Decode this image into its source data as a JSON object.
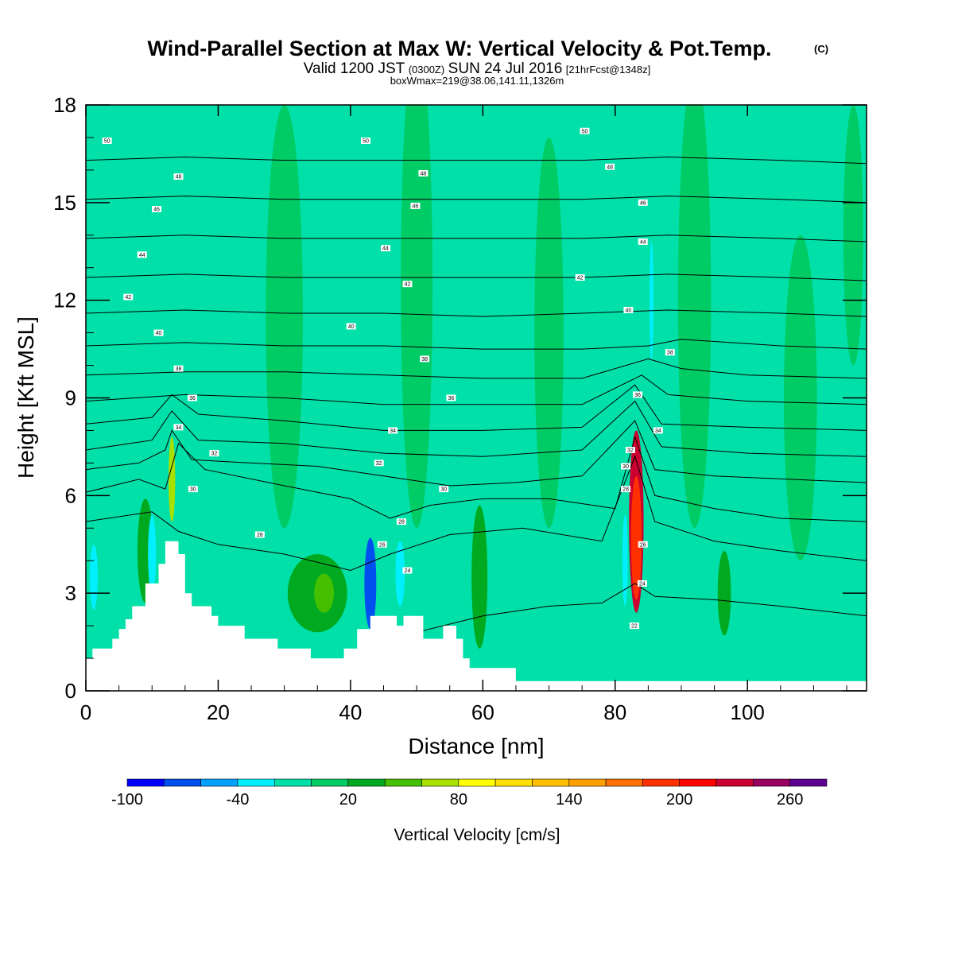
{
  "header": {
    "title": "Wind-Parallel Section at Max W: Vertical Velocity & Pot.Temp.",
    "title_mark": "(C)",
    "valid_prefix": "Valid 1200 JST",
    "valid_utc": "(0300Z)",
    "valid_date": "SUN 24 Jul 2016",
    "forecast": "[21hrFcst@1348z]",
    "box_info": "boxWmax=219@38.06,141.11,1326m"
  },
  "chart_data": {
    "type": "heatmap",
    "title": "Wind-Parallel Section at Max W: Vertical Velocity & Pot.Temp.",
    "xlabel": "Distance [nm]",
    "ylabel": "Height [Kft MSL]",
    "xlim": [
      0,
      118
    ],
    "ylim": [
      0,
      18
    ],
    "x_ticks": [
      "0",
      "20",
      "40",
      "60",
      "80",
      "100"
    ],
    "y_ticks": [
      "0",
      "3",
      "6",
      "9",
      "12",
      "15",
      "18"
    ],
    "x_tick_values": [
      0,
      20,
      40,
      60,
      80,
      100
    ],
    "y_tick_values": [
      0,
      3,
      6,
      9,
      12,
      15,
      18
    ],
    "grid": false,
    "colorbar": {
      "label": "Vertical Velocity [cm/s]",
      "tick_labels": [
        "-100",
        "-40",
        "20",
        "80",
        "140",
        "200",
        "260"
      ],
      "tick_values": [
        -100,
        -40,
        20,
        80,
        140,
        200,
        260
      ],
      "levels": [
        -100,
        -80,
        -60,
        -40,
        -20,
        0,
        20,
        40,
        60,
        80,
        100,
        120,
        140,
        160,
        180,
        200,
        220,
        240,
        260,
        280
      ],
      "colors": [
        "#0000ff",
        "#0050f0",
        "#00a0ff",
        "#00f0ff",
        "#00e0a8",
        "#00cc66",
        "#00aa20",
        "#44c000",
        "#a8e000",
        "#ffff00",
        "#ffe000",
        "#ffc000",
        "#ffa000",
        "#ff7000",
        "#ff3000",
        "#ff0000",
        "#cc0030",
        "#990060",
        "#5c0090"
      ]
    },
    "terrain_kft": [
      [
        0,
        1.0
      ],
      [
        1,
        1.0
      ],
      [
        1,
        1.3
      ],
      [
        4,
        1.3
      ],
      [
        4,
        1.6
      ],
      [
        5,
        1.6
      ],
      [
        5,
        1.9
      ],
      [
        6,
        1.9
      ],
      [
        6,
        2.2
      ],
      [
        7,
        2.2
      ],
      [
        7,
        2.6
      ],
      [
        9,
        2.6
      ],
      [
        9,
        3.3
      ],
      [
        11,
        3.3
      ],
      [
        11,
        3.9
      ],
      [
        12,
        3.9
      ],
      [
        12,
        4.6
      ],
      [
        14,
        4.6
      ],
      [
        14,
        4.2
      ],
      [
        15,
        4.2
      ],
      [
        15,
        3.0
      ],
      [
        16,
        3.0
      ],
      [
        16,
        2.6
      ],
      [
        19,
        2.6
      ],
      [
        19,
        2.3
      ],
      [
        20,
        2.3
      ],
      [
        20,
        2.0
      ],
      [
        24,
        2.0
      ],
      [
        24,
        1.6
      ],
      [
        29,
        1.6
      ],
      [
        29,
        1.3
      ],
      [
        34,
        1.3
      ],
      [
        34,
        1.0
      ],
      [
        39,
        1.0
      ],
      [
        39,
        1.3
      ],
      [
        41,
        1.3
      ],
      [
        41,
        1.9
      ],
      [
        43,
        1.9
      ],
      [
        43,
        2.3
      ],
      [
        47,
        2.3
      ],
      [
        47,
        2.0
      ],
      [
        48,
        2.0
      ],
      [
        48,
        2.3
      ],
      [
        51,
        2.3
      ],
      [
        51,
        1.6
      ],
      [
        54,
        1.6
      ],
      [
        54,
        2.0
      ],
      [
        56,
        2.0
      ],
      [
        56,
        1.6
      ],
      [
        57,
        1.6
      ],
      [
        57,
        1.0
      ],
      [
        58,
        1.0
      ],
      [
        58,
        0.7
      ],
      [
        65,
        0.7
      ],
      [
        65,
        0.3
      ],
      [
        118,
        0.3
      ]
    ],
    "theta_contours": [
      {
        "value": 24,
        "points": [
          [
            42,
            0.5
          ],
          [
            50,
            1.8
          ],
          [
            60,
            2.3
          ],
          [
            70,
            2.6
          ],
          [
            78,
            2.7
          ],
          [
            83,
            3.3
          ],
          [
            86,
            2.9
          ],
          [
            95,
            2.8
          ],
          [
            105,
            2.6
          ],
          [
            118,
            2.3
          ]
        ]
      },
      {
        "value": 26,
        "points": [
          [
            0,
            5.2
          ],
          [
            10,
            5.5
          ],
          [
            14,
            4.9
          ],
          [
            20,
            4.5
          ],
          [
            30,
            4.2
          ],
          [
            40,
            3.7
          ],
          [
            46,
            4.2
          ],
          [
            55,
            4.8
          ],
          [
            66,
            5.0
          ],
          [
            78,
            4.6
          ],
          [
            83,
            7.2
          ],
          [
            86,
            5.2
          ],
          [
            95,
            4.6
          ],
          [
            105,
            4.3
          ],
          [
            118,
            4.0
          ]
        ]
      },
      {
        "value": 28,
        "points": [
          [
            0,
            6.1
          ],
          [
            8,
            6.5
          ],
          [
            12,
            6.2
          ],
          [
            14,
            7.6
          ],
          [
            18,
            6.8
          ],
          [
            30,
            6.3
          ],
          [
            40,
            5.9
          ],
          [
            46,
            5.3
          ],
          [
            52,
            5.7
          ],
          [
            60,
            5.9
          ],
          [
            70,
            5.9
          ],
          [
            80,
            5.6
          ],
          [
            83,
            7.8
          ],
          [
            86,
            6.0
          ],
          [
            95,
            5.6
          ],
          [
            105,
            5.3
          ],
          [
            118,
            5.2
          ]
        ]
      },
      {
        "value": 30,
        "points": [
          [
            0,
            6.8
          ],
          [
            8,
            7.0
          ],
          [
            12,
            7.4
          ],
          [
            13,
            8.0
          ],
          [
            16,
            7.1
          ],
          [
            25,
            7.0
          ],
          [
            35,
            6.9
          ],
          [
            45,
            6.6
          ],
          [
            55,
            6.3
          ],
          [
            65,
            6.4
          ],
          [
            75,
            6.6
          ],
          [
            83,
            8.3
          ],
          [
            86,
            6.8
          ],
          [
            95,
            6.6
          ],
          [
            118,
            6.4
          ]
        ]
      },
      {
        "value": 32,
        "points": [
          [
            0,
            7.4
          ],
          [
            10,
            7.7
          ],
          [
            13,
            8.6
          ],
          [
            17,
            7.7
          ],
          [
            30,
            7.6
          ],
          [
            45,
            7.3
          ],
          [
            60,
            7.2
          ],
          [
            75,
            7.4
          ],
          [
            83,
            8.9
          ],
          [
            87,
            7.5
          ],
          [
            100,
            7.3
          ],
          [
            118,
            7.2
          ]
        ]
      },
      {
        "value": 34,
        "points": [
          [
            0,
            8.2
          ],
          [
            10,
            8.4
          ],
          [
            13,
            9.1
          ],
          [
            17,
            8.5
          ],
          [
            30,
            8.3
          ],
          [
            45,
            8.0
          ],
          [
            60,
            8.0
          ],
          [
            75,
            8.1
          ],
          [
            83,
            9.4
          ],
          [
            87,
            8.2
          ],
          [
            100,
            8.1
          ],
          [
            118,
            8.0
          ]
        ]
      },
      {
        "value": 36,
        "points": [
          [
            0,
            8.9
          ],
          [
            15,
            9.1
          ],
          [
            30,
            9.0
          ],
          [
            45,
            8.8
          ],
          [
            60,
            8.8
          ],
          [
            75,
            8.8
          ],
          [
            84,
            9.7
          ],
          [
            88,
            9.1
          ],
          [
            100,
            8.9
          ],
          [
            118,
            8.8
          ]
        ]
      },
      {
        "value": 38,
        "points": [
          [
            0,
            9.7
          ],
          [
            15,
            9.8
          ],
          [
            30,
            9.8
          ],
          [
            45,
            9.7
          ],
          [
            60,
            9.6
          ],
          [
            75,
            9.6
          ],
          [
            85,
            10.2
          ],
          [
            90,
            9.9
          ],
          [
            100,
            9.7
          ],
          [
            118,
            9.6
          ]
        ]
      },
      {
        "value": 40,
        "points": [
          [
            0,
            10.6
          ],
          [
            15,
            10.7
          ],
          [
            30,
            10.6
          ],
          [
            45,
            10.6
          ],
          [
            60,
            10.5
          ],
          [
            75,
            10.5
          ],
          [
            85,
            10.6
          ],
          [
            90,
            10.8
          ],
          [
            105,
            10.6
          ],
          [
            118,
            10.5
          ]
        ]
      },
      {
        "value": 42,
        "points": [
          [
            0,
            11.6
          ],
          [
            15,
            11.7
          ],
          [
            30,
            11.6
          ],
          [
            45,
            11.6
          ],
          [
            60,
            11.5
          ],
          [
            75,
            11.6
          ],
          [
            88,
            11.7
          ],
          [
            105,
            11.6
          ],
          [
            118,
            11.5
          ]
        ]
      },
      {
        "value": 44,
        "points": [
          [
            0,
            12.7
          ],
          [
            15,
            12.8
          ],
          [
            30,
            12.7
          ],
          [
            45,
            12.7
          ],
          [
            60,
            12.7
          ],
          [
            75,
            12.7
          ],
          [
            88,
            12.8
          ],
          [
            105,
            12.7
          ],
          [
            118,
            12.6
          ]
        ]
      },
      {
        "value": 46,
        "points": [
          [
            0,
            13.9
          ],
          [
            15,
            14.0
          ],
          [
            30,
            13.9
          ],
          [
            45,
            13.9
          ],
          [
            60,
            13.9
          ],
          [
            75,
            13.9
          ],
          [
            88,
            14.0
          ],
          [
            105,
            13.9
          ],
          [
            118,
            13.8
          ]
        ]
      },
      {
        "value": 48,
        "points": [
          [
            0,
            15.1
          ],
          [
            15,
            15.2
          ],
          [
            30,
            15.1
          ],
          [
            45,
            15.1
          ],
          [
            60,
            15.1
          ],
          [
            75,
            15.1
          ],
          [
            88,
            15.2
          ],
          [
            105,
            15.1
          ],
          [
            118,
            15.0
          ]
        ]
      },
      {
        "value": 50,
        "points": [
          [
            0,
            16.3
          ],
          [
            15,
            16.4
          ],
          [
            30,
            16.3
          ],
          [
            45,
            16.3
          ],
          [
            60,
            16.3
          ],
          [
            75,
            16.3
          ],
          [
            88,
            16.4
          ],
          [
            105,
            16.3
          ],
          [
            118,
            16.2
          ]
        ]
      }
    ],
    "contour_labels": [
      {
        "text": "50",
        "x": 3.2,
        "y": 16.9
      },
      {
        "text": "50",
        "x": 42.3,
        "y": 16.9
      },
      {
        "text": "50",
        "x": 75.4,
        "y": 17.2
      },
      {
        "text": "48",
        "x": 14,
        "y": 15.8
      },
      {
        "text": "48",
        "x": 51,
        "y": 15.9
      },
      {
        "text": "48",
        "x": 79.2,
        "y": 16.1
      },
      {
        "text": "46",
        "x": 10.7,
        "y": 14.8
      },
      {
        "text": "46",
        "x": 49.8,
        "y": 14.9
      },
      {
        "text": "46",
        "x": 84.2,
        "y": 15.0
      },
      {
        "text": "44",
        "x": 8.5,
        "y": 13.4
      },
      {
        "text": "44",
        "x": 45.3,
        "y": 13.6
      },
      {
        "text": "44",
        "x": 84.2,
        "y": 13.8
      },
      {
        "text": "42",
        "x": 6.4,
        "y": 12.1
      },
      {
        "text": "42",
        "x": 48.6,
        "y": 12.5
      },
      {
        "text": "42",
        "x": 74.7,
        "y": 12.7
      },
      {
        "text": "40",
        "x": 11,
        "y": 11.0
      },
      {
        "text": "40",
        "x": 40.1,
        "y": 11.2
      },
      {
        "text": "40",
        "x": 82,
        "y": 11.7
      },
      {
        "text": "38",
        "x": 14,
        "y": 9.9
      },
      {
        "text": "38",
        "x": 51.2,
        "y": 10.2
      },
      {
        "text": "38",
        "x": 88.3,
        "y": 10.4
      },
      {
        "text": "36",
        "x": 16.1,
        "y": 9.0
      },
      {
        "text": "36",
        "x": 55.2,
        "y": 9.0
      },
      {
        "text": "36",
        "x": 83.4,
        "y": 9.1
      },
      {
        "text": "34",
        "x": 14,
        "y": 8.1
      },
      {
        "text": "34",
        "x": 46.4,
        "y": 8.0
      },
      {
        "text": "34",
        "x": 86.5,
        "y": 8.0
      },
      {
        "text": "32",
        "x": 19.4,
        "y": 7.3
      },
      {
        "text": "32",
        "x": 44.3,
        "y": 7.0
      },
      {
        "text": "32",
        "x": 82.3,
        "y": 7.4
      },
      {
        "text": "30",
        "x": 16.2,
        "y": 6.2
      },
      {
        "text": "30",
        "x": 54.1,
        "y": 6.2
      },
      {
        "text": "30",
        "x": 81.6,
        "y": 6.9
      },
      {
        "text": "28",
        "x": 26.3,
        "y": 4.8
      },
      {
        "text": "28",
        "x": 47.7,
        "y": 5.2
      },
      {
        "text": "28",
        "x": 81.6,
        "y": 6.2
      },
      {
        "text": "26",
        "x": 44.8,
        "y": 4.5
      },
      {
        "text": "26",
        "x": 84.2,
        "y": 4.5
      },
      {
        "text": "24",
        "x": 48.6,
        "y": 3.7
      },
      {
        "text": "24",
        "x": 84.1,
        "y": 3.3
      },
      {
        "text": "22",
        "x": 82.9,
        "y": 2.0
      }
    ],
    "w_blobs": [
      {
        "x": 83.2,
        "y": 5.2,
        "rx": 1.1,
        "ry": 2.8,
        "w": 230
      },
      {
        "x": 83.2,
        "y": 4.7,
        "rx": 0.8,
        "ry": 1.9,
        "w": 190
      },
      {
        "x": 13,
        "y": 6.5,
        "rx": 0.5,
        "ry": 1.3,
        "w": 75
      },
      {
        "x": 43,
        "y": 3.3,
        "rx": 0.9,
        "ry": 1.4,
        "w": -75
      },
      {
        "x": 47.5,
        "y": 3.6,
        "rx": 0.7,
        "ry": 1.0,
        "w": -35
      },
      {
        "x": 81.5,
        "y": 4.0,
        "rx": 0.4,
        "ry": 1.4,
        "w": -40
      },
      {
        "x": 85.5,
        "y": 12.0,
        "rx": 0.3,
        "ry": 1.8,
        "w": -25
      },
      {
        "x": 1.2,
        "y": 3.5,
        "rx": 0.6,
        "ry": 1.0,
        "w": -30
      },
      {
        "x": 10,
        "y": 4.2,
        "rx": 0.6,
        "ry": 1.2,
        "w": -25
      },
      {
        "x": 35,
        "y": 3.0,
        "rx": 4.5,
        "ry": 1.2,
        "w": 30
      },
      {
        "x": 36,
        "y": 3.0,
        "rx": 1.5,
        "ry": 0.6,
        "w": 45
      },
      {
        "x": 59.5,
        "y": 3.5,
        "rx": 1.2,
        "ry": 2.2,
        "w": 30
      },
      {
        "x": 96.5,
        "y": 3.0,
        "rx": 1.0,
        "ry": 1.3,
        "w": 28
      },
      {
        "x": 9,
        "y": 4.3,
        "rx": 1.2,
        "ry": 1.6,
        "w": 30
      },
      {
        "x": 30,
        "y": 11.5,
        "rx": 2.8,
        "ry": 6.5,
        "w": 5
      },
      {
        "x": 50,
        "y": 12.5,
        "rx": 2.4,
        "ry": 7.5,
        "w": 5
      },
      {
        "x": 70,
        "y": 11.0,
        "rx": 2.2,
        "ry": 6.0,
        "w": 6
      },
      {
        "x": 92,
        "y": 12.0,
        "rx": 2.5,
        "ry": 7.0,
        "w": 5
      },
      {
        "x": 108,
        "y": 9.0,
        "rx": 2.5,
        "ry": 5.0,
        "w": 6
      },
      {
        "x": 116,
        "y": 14.0,
        "rx": 1.5,
        "ry": 4.0,
        "w": 5
      }
    ]
  }
}
